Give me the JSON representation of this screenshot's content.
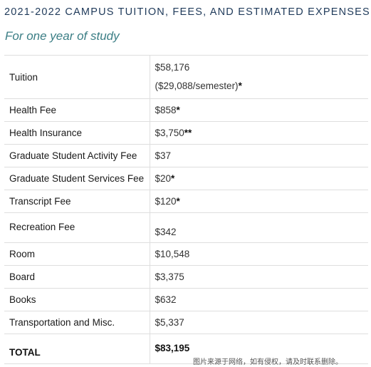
{
  "title": "2021-2022 CAMPUS TUITION, FEES, AND ESTIMATED EXPENSES",
  "subtitle": "For one year of study",
  "rows": [
    {
      "label": "Tuition",
      "value": "$58,176",
      "value_line2": "($29,088/semester)",
      "star": "*"
    },
    {
      "label": "Health Fee",
      "value": "$858",
      "star": "*"
    },
    {
      "label": "Health Insurance",
      "value": "$3,750",
      "star": "**"
    },
    {
      "label": "Graduate Student Activity Fee",
      "value": "$37",
      "star": ""
    },
    {
      "label": "Graduate Student Services Fee",
      "value": "$20",
      "star": "*"
    },
    {
      "label": "Transcript Fee",
      "value": "$120",
      "star": "*"
    },
    {
      "label": "Recreation Fee",
      "value": "$342",
      "star": ""
    },
    {
      "label": "Room",
      "value": "$10,548",
      "star": ""
    },
    {
      "label": "Board",
      "value": "$3,375",
      "star": ""
    },
    {
      "label": "Books",
      "value": "$632",
      "star": ""
    },
    {
      "label": "Transportation and Misc.",
      "value": "$5,337",
      "star": ""
    }
  ],
  "total": {
    "label": "TOTAL",
    "value": "$83,195"
  },
  "watermark": "图片来源于网络，如有侵权，请及时联系删除。"
}
